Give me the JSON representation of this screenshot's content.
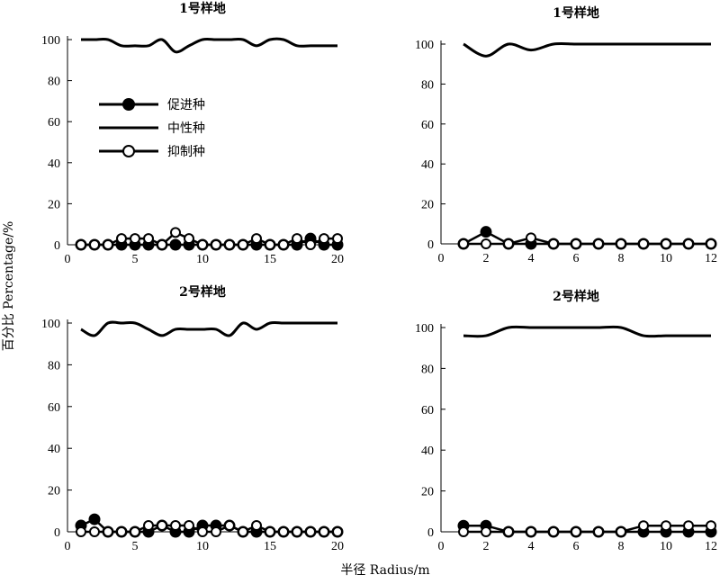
{
  "x_axis_label": "半径 Radius/m",
  "y_axis_label": "百分比 Percentage/%",
  "legend": [
    {
      "name": "促进种",
      "marker": "filled-circle"
    },
    {
      "name": "中性种",
      "marker": "line"
    },
    {
      "name": "抑制种",
      "marker": "open-circle"
    }
  ],
  "colors": {
    "ink": "#000000",
    "background": "#ffffff"
  },
  "chart_data": [
    {
      "type": "line",
      "title": "1号样地",
      "xlim": [
        0,
        20
      ],
      "ylim": [
        0,
        100
      ],
      "xticks": [
        0,
        5,
        10,
        15,
        20
      ],
      "yticks": [
        0,
        20,
        40,
        60,
        80,
        100
      ],
      "x": [
        1,
        2,
        3,
        4,
        5,
        6,
        7,
        8,
        9,
        10,
        11,
        12,
        13,
        14,
        15,
        16,
        17,
        18,
        19,
        20
      ],
      "series": [
        {
          "name": "促进种",
          "values": [
            0,
            0,
            0,
            0,
            0,
            0,
            0,
            0,
            0,
            0,
            0,
            0,
            0,
            0,
            0,
            0,
            0,
            3,
            0,
            0
          ]
        },
        {
          "name": "中性种",
          "values": [
            100,
            100,
            100,
            97,
            97,
            97,
            100,
            94,
            97,
            100,
            100,
            100,
            100,
            97,
            100,
            100,
            97,
            97,
            97,
            97
          ]
        },
        {
          "name": "抑制种",
          "values": [
            0,
            0,
            0,
            3,
            3,
            3,
            0,
            6,
            3,
            0,
            0,
            0,
            0,
            3,
            0,
            0,
            3,
            0,
            3,
            3
          ]
        }
      ]
    },
    {
      "type": "line",
      "title": "1号样地",
      "xlim": [
        0,
        12
      ],
      "ylim": [
        0,
        100
      ],
      "xticks": [
        0,
        2,
        4,
        6,
        8,
        10,
        12
      ],
      "yticks": [
        0,
        20,
        40,
        60,
        80,
        100
      ],
      "x": [
        1,
        2,
        3,
        4,
        5,
        6,
        7,
        8,
        9,
        10,
        11,
        12
      ],
      "series": [
        {
          "name": "促进种",
          "values": [
            0,
            6,
            0,
            0,
            0,
            0,
            0,
            0,
            0,
            0,
            0,
            0
          ]
        },
        {
          "name": "中性种",
          "values": [
            100,
            94,
            100,
            97,
            100,
            100,
            100,
            100,
            100,
            100,
            100,
            100
          ]
        },
        {
          "name": "抑制种",
          "values": [
            0,
            0,
            0,
            3,
            0,
            0,
            0,
            0,
            0,
            0,
            0,
            0
          ]
        }
      ]
    },
    {
      "type": "line",
      "title": "2号样地",
      "xlim": [
        0,
        20
      ],
      "ylim": [
        0,
        100
      ],
      "xticks": [
        0,
        5,
        10,
        15,
        20
      ],
      "yticks": [
        0,
        20,
        40,
        60,
        80,
        100
      ],
      "x": [
        1,
        2,
        3,
        4,
        5,
        6,
        7,
        8,
        9,
        10,
        11,
        12,
        13,
        14,
        15,
        16,
        17,
        18,
        19,
        20
      ],
      "series": [
        {
          "name": "促进种",
          "values": [
            3,
            6,
            0,
            0,
            0,
            0,
            3,
            0,
            0,
            3,
            3,
            3,
            0,
            0,
            0,
            0,
            0,
            0,
            0,
            0
          ]
        },
        {
          "name": "中性种",
          "values": [
            97,
            94,
            100,
            100,
            100,
            97,
            94,
            97,
            97,
            97,
            97,
            94,
            100,
            97,
            100,
            100,
            100,
            100,
            100,
            100
          ]
        },
        {
          "name": "抑制种",
          "values": [
            0,
            0,
            0,
            0,
            0,
            3,
            3,
            3,
            3,
            0,
            0,
            3,
            0,
            3,
            0,
            0,
            0,
            0,
            0,
            0
          ]
        }
      ]
    },
    {
      "type": "line",
      "title": "2号样地",
      "xlim": [
        0,
        12
      ],
      "ylim": [
        0,
        100
      ],
      "xticks": [
        0,
        2,
        4,
        6,
        8,
        10,
        12
      ],
      "yticks": [
        0,
        20,
        40,
        60,
        80,
        100
      ],
      "x": [
        1,
        2,
        3,
        4,
        5,
        6,
        7,
        8,
        9,
        10,
        11,
        12
      ],
      "series": [
        {
          "name": "促进种",
          "values": [
            3,
            3,
            0,
            0,
            0,
            0,
            0,
            0,
            0,
            0,
            0,
            0
          ]
        },
        {
          "name": "中性种",
          "values": [
            96,
            96,
            100,
            100,
            100,
            100,
            100,
            100,
            96,
            96,
            96,
            96
          ]
        },
        {
          "name": "抑制种",
          "values": [
            0,
            0,
            0,
            0,
            0,
            0,
            0,
            0,
            3,
            3,
            3,
            3
          ]
        }
      ]
    }
  ]
}
